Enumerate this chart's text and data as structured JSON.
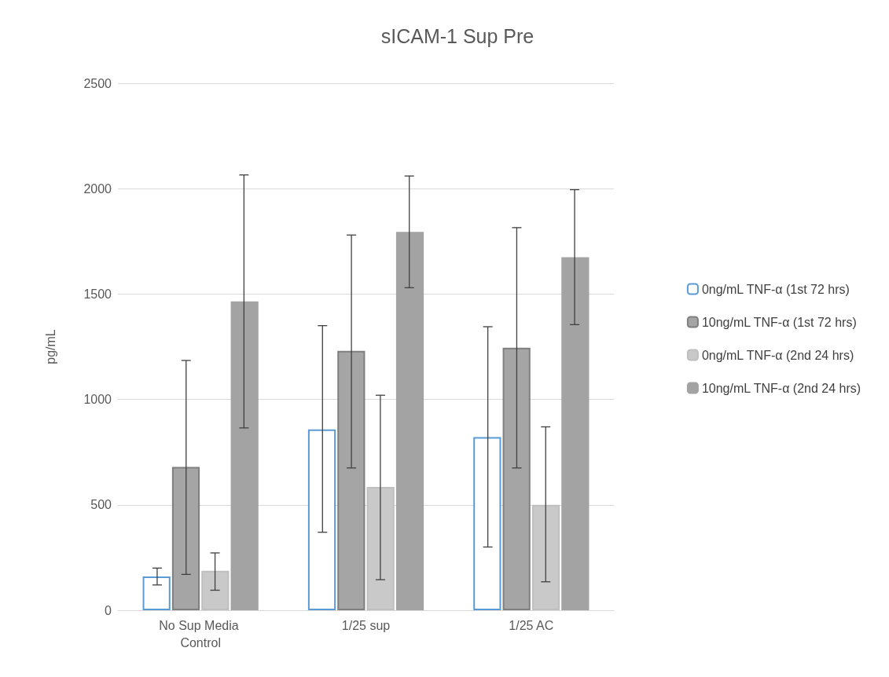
{
  "chart_data": {
    "type": "bar",
    "title": "sICAM-1 Sup Pre",
    "ylabel": "pg/mL",
    "categories": [
      "No Sup Media Control",
      "1/25 sup",
      "1/25 AC"
    ],
    "series": [
      {
        "name": "0ng/mL TNF-α (1st 72 hrs)",
        "color": "#ffffff",
        "values": [
          160,
          858,
          822
        ],
        "errors": [
          [
            120,
            200
          ],
          [
            370,
            1350
          ],
          [
            300,
            1345
          ]
        ]
      },
      {
        "name": "10ng/mL TNF-α (1st 72 hrs)",
        "color": "#a5a5a5",
        "values": [
          680,
          1230,
          1245
        ],
        "errors": [
          [
            170,
            1185
          ],
          [
            675,
            1780
          ],
          [
            675,
            1815
          ]
        ]
      },
      {
        "name": "0ng/mL TNF-α (2nd 24 hrs)",
        "color": "#c9c9c9",
        "values": [
          187,
          585,
          500
        ],
        "errors": [
          [
            95,
            272
          ],
          [
            145,
            1020
          ],
          [
            135,
            870
          ]
        ]
      },
      {
        "name": "10ng/mL TNF-α (2nd 24 hrs)",
        "color": "#a3a3a3",
        "values": [
          1465,
          1795,
          1675
        ],
        "errors": [
          [
            865,
            2065
          ],
          [
            1530,
            2060
          ],
          [
            1355,
            1995
          ]
        ]
      }
    ],
    "ylim": [
      0,
      2500
    ],
    "yticks": [
      0,
      500,
      1000,
      1500,
      2000,
      2500
    ],
    "grid": "y",
    "legend": "right"
  }
}
